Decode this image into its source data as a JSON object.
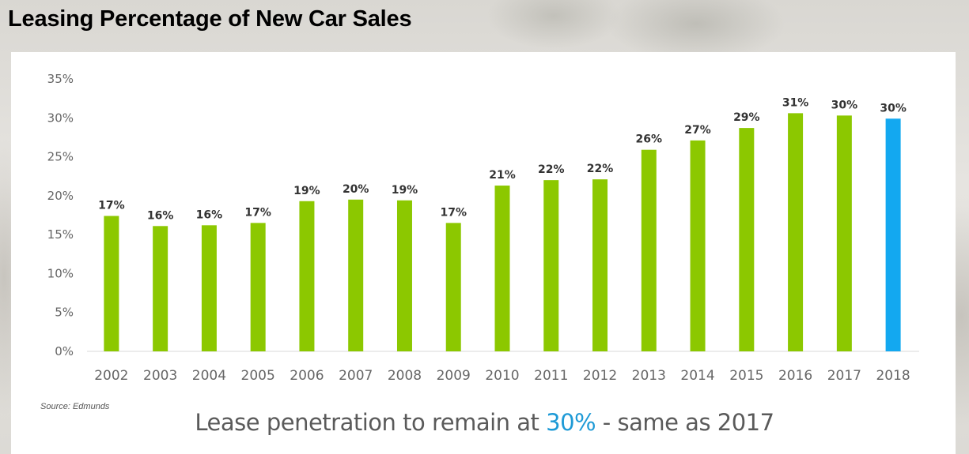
{
  "page": {
    "title": "Leasing Percentage of New Car Sales",
    "source": "Source: Edmunds",
    "subtitle": {
      "before": "Lease penetration to remain at ",
      "highlight": "30%",
      "after": " - same as 2017"
    }
  },
  "colors": {
    "bar_actual": "#8cc800",
    "bar_forecast": "#13a8f0",
    "highlight_text": "#1e9ad6",
    "axis_text": "#666666",
    "label_text": "#333333"
  },
  "chart_data": {
    "type": "bar",
    "title": "Leasing Percentage of New Car Sales",
    "xlabel": "",
    "ylabel": "",
    "ylim": [
      0,
      35
    ],
    "yticks": [
      "0%",
      "5%",
      "10%",
      "15%",
      "20%",
      "25%",
      "30%",
      "35%"
    ],
    "ytick_values": [
      0,
      5,
      10,
      15,
      20,
      25,
      30,
      35
    ],
    "grid": false,
    "legend": "none",
    "categories": [
      "2002",
      "2003",
      "2004",
      "2005",
      "2006",
      "2007",
      "2008",
      "2009",
      "2010",
      "2011",
      "2012",
      "2013",
      "2014",
      "2015",
      "2016",
      "2017",
      "2018"
    ],
    "values": [
      17.4,
      16.1,
      16.2,
      16.5,
      19.3,
      19.5,
      19.4,
      16.5,
      21.3,
      22.0,
      22.1,
      25.9,
      27.1,
      28.7,
      30.6,
      30.3,
      29.9
    ],
    "data_labels": [
      "17%",
      "16%",
      "16%",
      "17%",
      "19%",
      "20%",
      "19%",
      "17%",
      "21%",
      "22%",
      "22%",
      "26%",
      "27%",
      "29%",
      "31%",
      "30%",
      "30%"
    ],
    "forecast": [
      false,
      false,
      false,
      false,
      false,
      false,
      false,
      false,
      false,
      false,
      false,
      false,
      false,
      false,
      false,
      false,
      true
    ]
  }
}
